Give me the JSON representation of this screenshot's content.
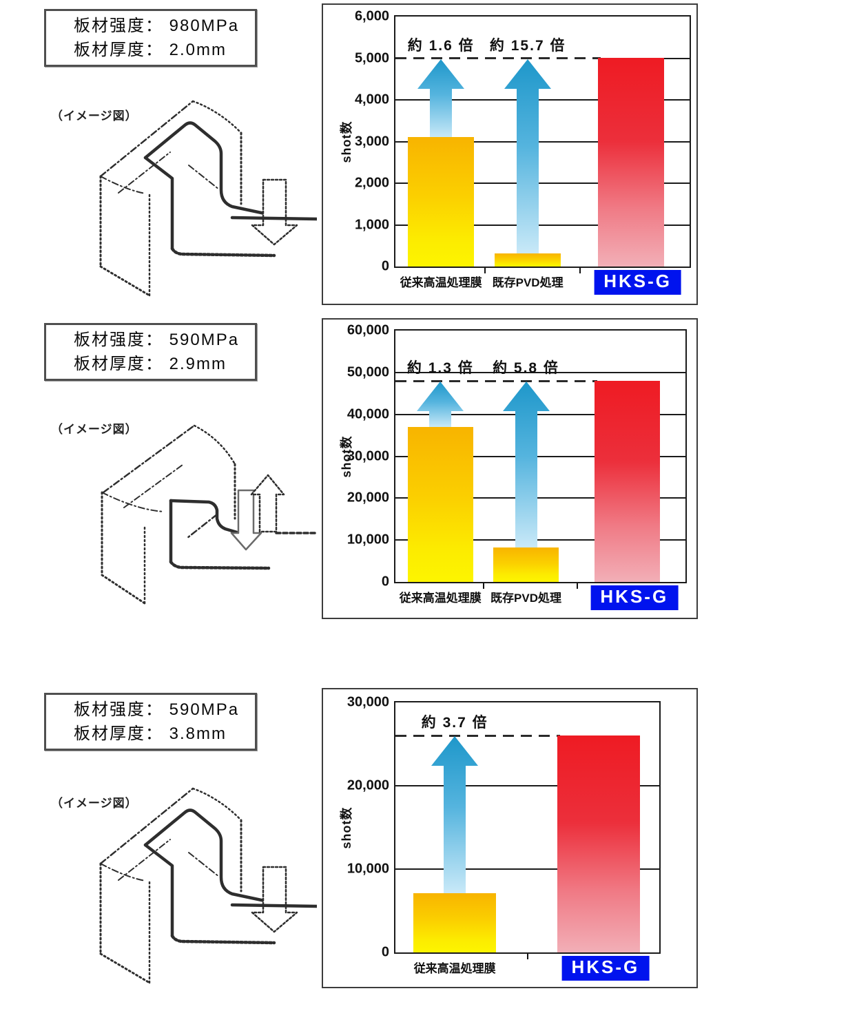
{
  "sections": [
    {
      "info_line1": "板材强度： 980MPa",
      "info_line2": "板材厚度： 2.0mm",
      "diagram_label": "（イメージ図）"
    },
    {
      "info_line1": "板材强度： 590MPa",
      "info_line2": "板材厚度： 2.9mm",
      "diagram_label": "（イメージ図）"
    },
    {
      "info_line1": "板材强度： 590MPa",
      "info_line2": "板材厚度： 3.8mm",
      "diagram_label": "（イメージ図）"
    }
  ],
  "chart_data": [
    {
      "type": "bar",
      "title": "",
      "xlabel": "",
      "ylabel": "shot数",
      "ylim": [
        0,
        6000
      ],
      "ymax": 6000,
      "ytick_step": 1000,
      "grid": true,
      "categories": [
        "従来高温処理膜",
        "既存PVD処理",
        "HKS-G"
      ],
      "values": [
        3100,
        320,
        5000
      ],
      "kinds": [
        "normal",
        "normal",
        "highlight"
      ],
      "dashed_line_value": 5000,
      "annotations": [
        {
          "bar_index": 0,
          "text": "約 1.6 倍"
        },
        {
          "bar_index": 1,
          "text": "約 15.7 倍"
        }
      ]
    },
    {
      "type": "bar",
      "title": "",
      "xlabel": "",
      "ylabel": "shot数",
      "ylim": [
        0,
        60000
      ],
      "ymax": 60000,
      "ytick_step": 10000,
      "grid": true,
      "categories": [
        "従来高温処理膜",
        "既存PVD処理",
        "HKS-G"
      ],
      "values": [
        37000,
        8300,
        48000
      ],
      "kinds": [
        "normal",
        "normal",
        "highlight"
      ],
      "dashed_line_value": 48000,
      "annotations": [
        {
          "bar_index": 0,
          "text": "約 1.3 倍"
        },
        {
          "bar_index": 1,
          "text": "約 5.8 倍"
        }
      ]
    },
    {
      "type": "bar",
      "title": "",
      "xlabel": "",
      "ylabel": "shot数",
      "ylim": [
        0,
        30000
      ],
      "ymax": 30000,
      "ytick_step": 10000,
      "grid": true,
      "categories": [
        "従来高温処理膜",
        "HKS-G"
      ],
      "values": [
        7100,
        26000
      ],
      "kinds": [
        "normal",
        "highlight"
      ],
      "dashed_line_value": 26000,
      "annotations": [
        {
          "bar_index": 0,
          "text": "約 3.7 倍"
        }
      ]
    }
  ],
  "colors": {
    "bar_normal_top": "#F8B400",
    "bar_normal_bottom": "#FDF500",
    "bar_highlight_top": "#EE1B23",
    "bar_highlight_bottom": "#F2AFB7",
    "arrow_dark": "#1E97CA",
    "arrow_mid": "#55B4DE",
    "arrow_light": "#C9E9F8",
    "highlight_label_bg": "#0013EE",
    "highlight_label_color": "#FFFFFF"
  }
}
